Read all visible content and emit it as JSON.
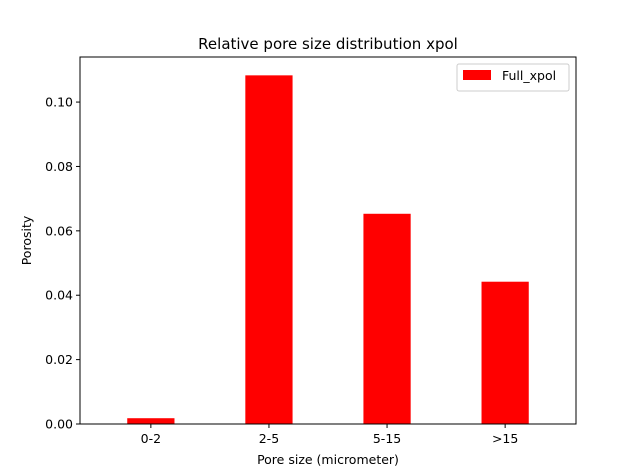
{
  "chart_data": {
    "type": "bar",
    "title": "Relative pore size distribution xpol",
    "xlabel": "Pore size (micrometer)",
    "ylabel": "Porosity",
    "categories": [
      "0-2",
      "2-5",
      "5-15",
      ">15"
    ],
    "series": [
      {
        "name": "Full_xpol",
        "color": "#ff0000",
        "values": [
          0.0018,
          0.1083,
          0.0653,
          0.0442
        ]
      }
    ],
    "ylim": [
      0,
      0.114
    ],
    "yticks": [
      0.0,
      0.02,
      0.04,
      0.06,
      0.08,
      0.1
    ],
    "ytick_labels": [
      "0.00",
      "0.02",
      "0.04",
      "0.06",
      "0.08",
      "0.10"
    ],
    "grid": false,
    "legend_position": "top-right"
  }
}
